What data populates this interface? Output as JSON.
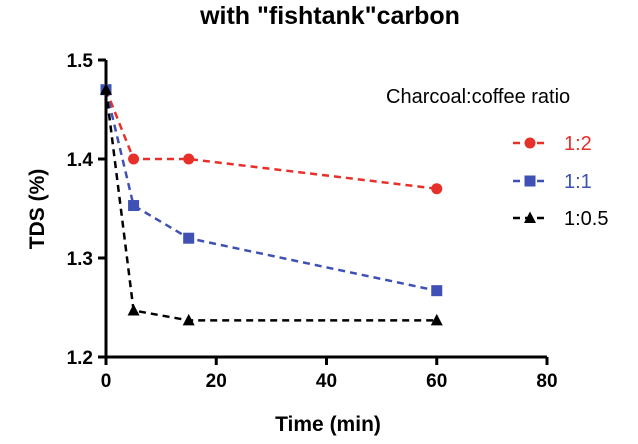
{
  "chart_data": {
    "type": "line",
    "title": "with \"fishtank\"carbon",
    "xlabel": "Time (min)",
    "ylabel": "TDS (%)",
    "xlim": [
      0,
      80
    ],
    "ylim": [
      1.2,
      1.5
    ],
    "xticks": [
      "0",
      "20",
      "40",
      "60",
      "80"
    ],
    "yticks": [
      "1.2",
      "1.3",
      "1.4",
      "1.5"
    ],
    "grid": false,
    "legend_title": "Charcoal:coffee ratio",
    "legend_position": "right",
    "series": [
      {
        "name": "1:2",
        "color": "#e8302a",
        "marker": "circle",
        "x": [
          0,
          5,
          15,
          60
        ],
        "y": [
          1.47,
          1.4,
          1.4,
          1.37
        ]
      },
      {
        "name": "1:1",
        "color": "#3f51b5",
        "marker": "square",
        "x": [
          0,
          5,
          15,
          60
        ],
        "y": [
          1.47,
          1.353,
          1.32,
          1.267
        ]
      },
      {
        "name": "1:0.5",
        "color": "#000000",
        "marker": "triangle",
        "x": [
          0,
          5,
          15,
          60
        ],
        "y": [
          1.47,
          1.247,
          1.237,
          1.237
        ]
      }
    ]
  }
}
